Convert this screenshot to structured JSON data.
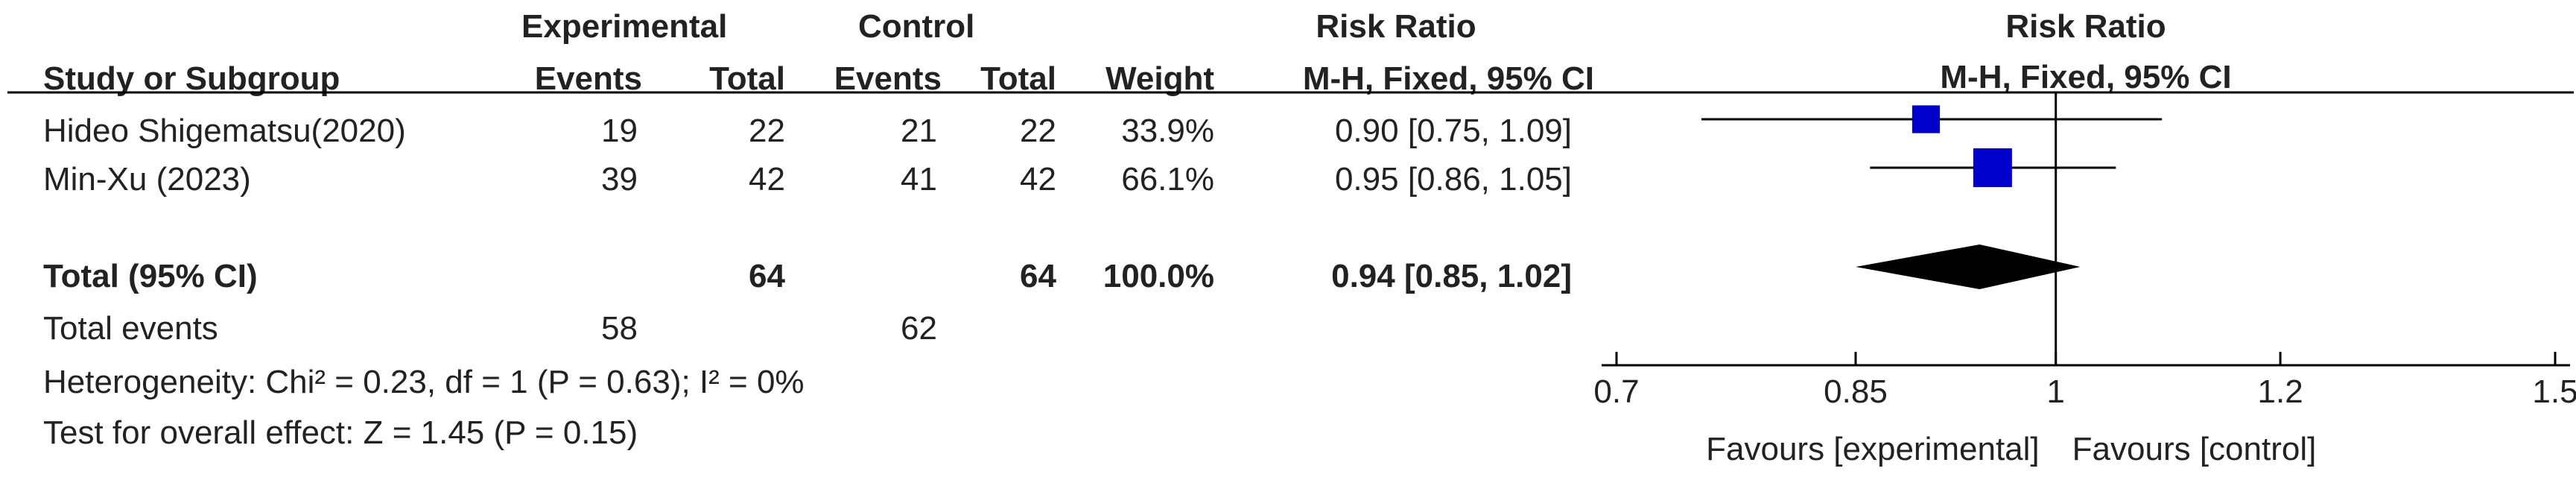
{
  "header": {
    "experimental": "Experimental",
    "control": "Control",
    "risk_ratio": "Risk Ratio",
    "plot_title": "Risk Ratio",
    "study": "Study or Subgroup",
    "exp_events": "Events",
    "exp_total": "Total",
    "ctl_events": "Events",
    "ctl_total": "Total",
    "weight": "Weight",
    "method": "M-H, Fixed, 95% CI",
    "plot_method": "M-H, Fixed, 95% CI"
  },
  "rows": [
    {
      "study": "Hideo Shigematsu(2020)",
      "exp_events": "19",
      "exp_total": "22",
      "ctl_events": "21",
      "ctl_total": "22",
      "weight": "33.9%",
      "ci_text": "0.90 [0.75, 1.09]"
    },
    {
      "study": "Min-Xu (2023)",
      "exp_events": "39",
      "exp_total": "42",
      "ctl_events": "41",
      "ctl_total": "42",
      "weight": "66.1%",
      "ci_text": "0.95 [0.86, 1.05]"
    }
  ],
  "total": {
    "label": "Total (95% CI)",
    "exp_total": "64",
    "ctl_total": "64",
    "weight": "100.0%",
    "ci_text": "0.94 [0.85, 1.02]"
  },
  "total_events": {
    "label": "Total events",
    "exp": "58",
    "ctl": "62"
  },
  "heterogeneity": "Heterogeneity: Chi² = 0.23, df = 1 (P = 0.63); I² = 0%",
  "overall_effect": "Test for overall effect: Z = 1.45 (P = 0.15)",
  "axis": {
    "ticks": [
      "0.7",
      "0.85",
      "1",
      "1.2",
      "1.5"
    ],
    "left_label": "Favours [experimental]",
    "right_label": "Favours [control]"
  },
  "colors": {
    "marker": "#0000cc",
    "diamond": "#000000",
    "lines": "#000000"
  },
  "chart_data": {
    "type": "forest",
    "scale": "log",
    "xlim": [
      0.7,
      1.5
    ],
    "null_value": 1,
    "studies": [
      {
        "name": "Hideo Shigematsu(2020)",
        "rr": 0.9,
        "lower": 0.75,
        "upper": 1.09,
        "weight": 33.9
      },
      {
        "name": "Min-Xu (2023)",
        "rr": 0.95,
        "lower": 0.86,
        "upper": 1.05,
        "weight": 66.1
      }
    ],
    "pooled": {
      "rr": 0.94,
      "lower": 0.85,
      "upper": 1.02
    },
    "ticks": [
      0.7,
      0.85,
      1,
      1.2,
      1.5
    ]
  }
}
